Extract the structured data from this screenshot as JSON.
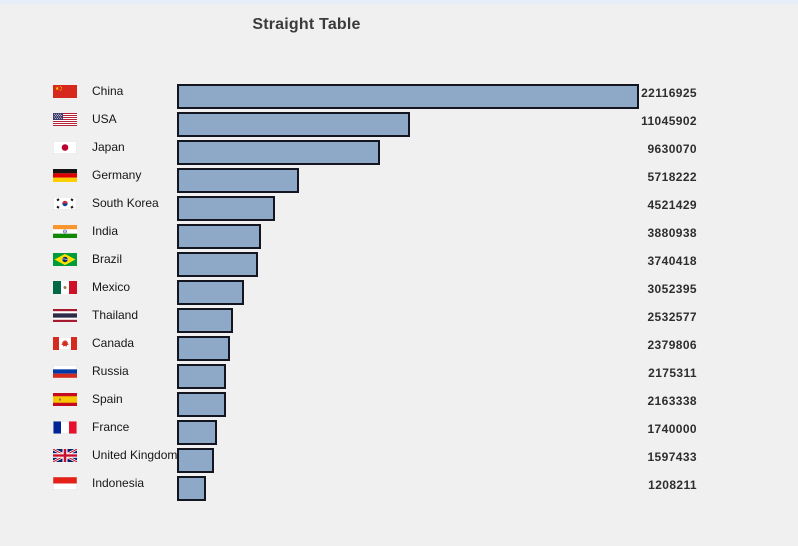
{
  "header": {
    "title": "Straight Table"
  },
  "colors": {
    "background": "#f0f0f1",
    "top_strip": "#e6eff9",
    "title_text": "#3b3b3b",
    "label_text": "#161616",
    "value_text": "#2e2e2e",
    "bar_fill": "#8ea9c8",
    "bar_border": "#131520"
  },
  "rows": [
    {
      "country": "China",
      "value": 22116925,
      "flag_icon": "china-flag-icon"
    },
    {
      "country": "USA",
      "value": 11045902,
      "flag_icon": "usa-flag-icon"
    },
    {
      "country": "Japan",
      "value": 9630070,
      "flag_icon": "japan-flag-icon"
    },
    {
      "country": "Germany",
      "value": 5718222,
      "flag_icon": "germany-flag-icon"
    },
    {
      "country": "South Korea",
      "value": 4521429,
      "flag_icon": "south-korea-flag-icon"
    },
    {
      "country": "India",
      "value": 3880938,
      "flag_icon": "india-flag-icon"
    },
    {
      "country": "Brazil",
      "value": 3740418,
      "flag_icon": "brazil-flag-icon"
    },
    {
      "country": "Mexico",
      "value": 3052395,
      "flag_icon": "mexico-flag-icon"
    },
    {
      "country": "Thailand",
      "value": 2532577,
      "flag_icon": "thailand-flag-icon"
    },
    {
      "country": "Canada",
      "value": 2379806,
      "flag_icon": "canada-flag-icon"
    },
    {
      "country": "Russia",
      "value": 2175311,
      "flag_icon": "russia-flag-icon"
    },
    {
      "country": "Spain",
      "value": 2163338,
      "flag_icon": "spain-flag-icon"
    },
    {
      "country": "France",
      "value": 1740000,
      "flag_icon": "france-flag-icon"
    },
    {
      "country": "United Kingdom",
      "value": 1597433,
      "flag_icon": "uk-flag-icon"
    },
    {
      "country": "Indonesia",
      "value": 1208211,
      "flag_icon": "indonesia-flag-icon"
    }
  ],
  "chart_data": {
    "type": "bar",
    "orientation": "horizontal",
    "title": "Straight Table",
    "categories": [
      "China",
      "USA",
      "Japan",
      "Germany",
      "South Korea",
      "India",
      "Brazil",
      "Mexico",
      "Thailand",
      "Canada",
      "Russia",
      "Spain",
      "France",
      "United Kingdom",
      "Indonesia"
    ],
    "values": [
      22116925,
      11045902,
      9630070,
      5718222,
      4521429,
      3880938,
      3740418,
      3052395,
      2532577,
      2379806,
      2175311,
      2163338,
      1740000,
      1597433,
      1208211
    ],
    "value_labels": [
      "22116925",
      "11045902",
      "9630070",
      "5718222",
      "4521429",
      "3880938",
      "3740418",
      "3052395",
      "2532577",
      "2379806",
      "2175311",
      "2163338",
      "1740000",
      "1597433",
      "1208211"
    ],
    "xlim": [
      0,
      22116925
    ],
    "grid": false,
    "legend": false,
    "bar_color": "#8ea9c8"
  }
}
